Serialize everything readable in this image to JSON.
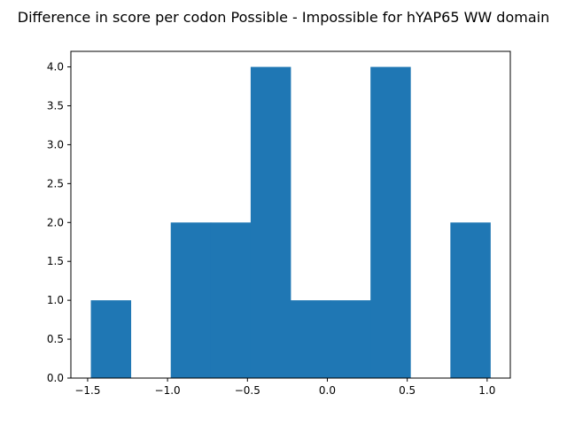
{
  "chart_data": {
    "type": "bar",
    "title": "Difference in score per codon Possible - Impossible for hYAP65 WW domain",
    "xlabel": "",
    "ylabel": "",
    "bin_edges": [
      -1.48,
      -1.23,
      -0.98,
      -0.73,
      -0.48,
      -0.23,
      0.02,
      0.27,
      0.52,
      0.77,
      1.02
    ],
    "values": [
      1,
      0,
      2,
      2,
      4,
      1,
      1,
      4,
      0,
      2
    ],
    "xlim": [
      -1.605,
      1.145
    ],
    "ylim": [
      0,
      4.2
    ],
    "xticks": [
      -1.5,
      -1.0,
      -0.5,
      0.0,
      0.5,
      1.0
    ],
    "xtick_labels": [
      "−1.5",
      "−1.0",
      "−0.5",
      "0.0",
      "0.5",
      "1.0"
    ],
    "yticks": [
      0,
      0.5,
      1.0,
      1.5,
      2.0,
      2.5,
      3.0,
      3.5,
      4.0
    ],
    "ytick_labels": [
      "0.0",
      "0.5",
      "1.0",
      "1.5",
      "2.0",
      "2.5",
      "3.0",
      "3.5",
      "4.0"
    ],
    "grid": false,
    "bar_color": "#1f77b4"
  }
}
